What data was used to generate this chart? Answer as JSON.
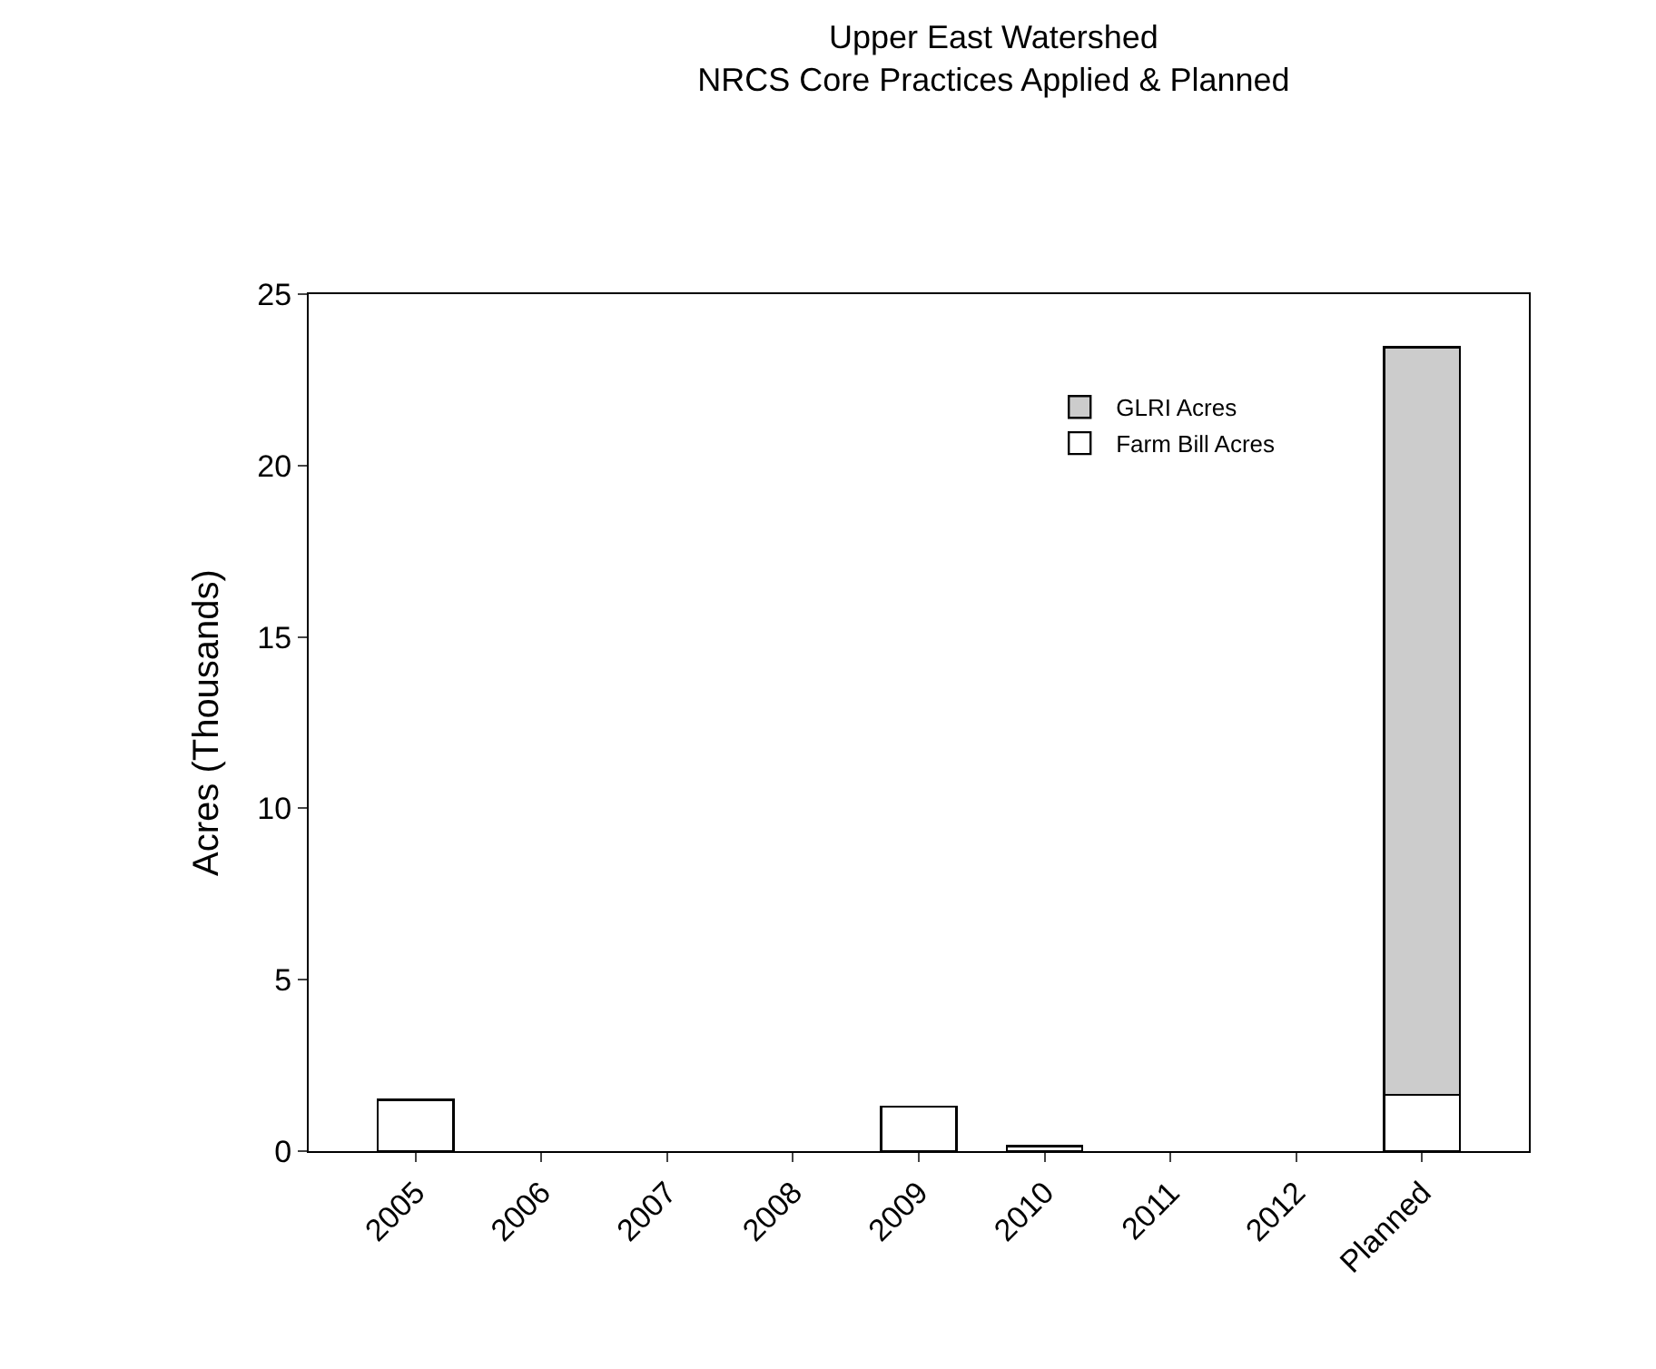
{
  "chart_data": {
    "type": "bar",
    "title": "Upper East Watershed",
    "subtitle": "NRCS Core Practices Applied & Planned",
    "ylabel": "Acres (Thousands)",
    "categories": [
      "2005",
      "2006",
      "2007",
      "2008",
      "2009",
      "2010",
      "2011",
      "2012",
      "Planned"
    ],
    "stacked": true,
    "series": [
      {
        "name": "Farm Bill Acres",
        "color": "#ffffff",
        "values": [
          1.5,
          null,
          null,
          null,
          1.3,
          0.15,
          null,
          null,
          1.65
        ]
      },
      {
        "name": "GLRI Acres",
        "color": "#cccccc",
        "values": [
          null,
          null,
          null,
          null,
          null,
          null,
          null,
          null,
          21.8
        ]
      }
    ],
    "ylim": [
      0,
      25
    ],
    "yticks": [
      0,
      5,
      10,
      15,
      20,
      25
    ],
    "legend": "top right"
  }
}
